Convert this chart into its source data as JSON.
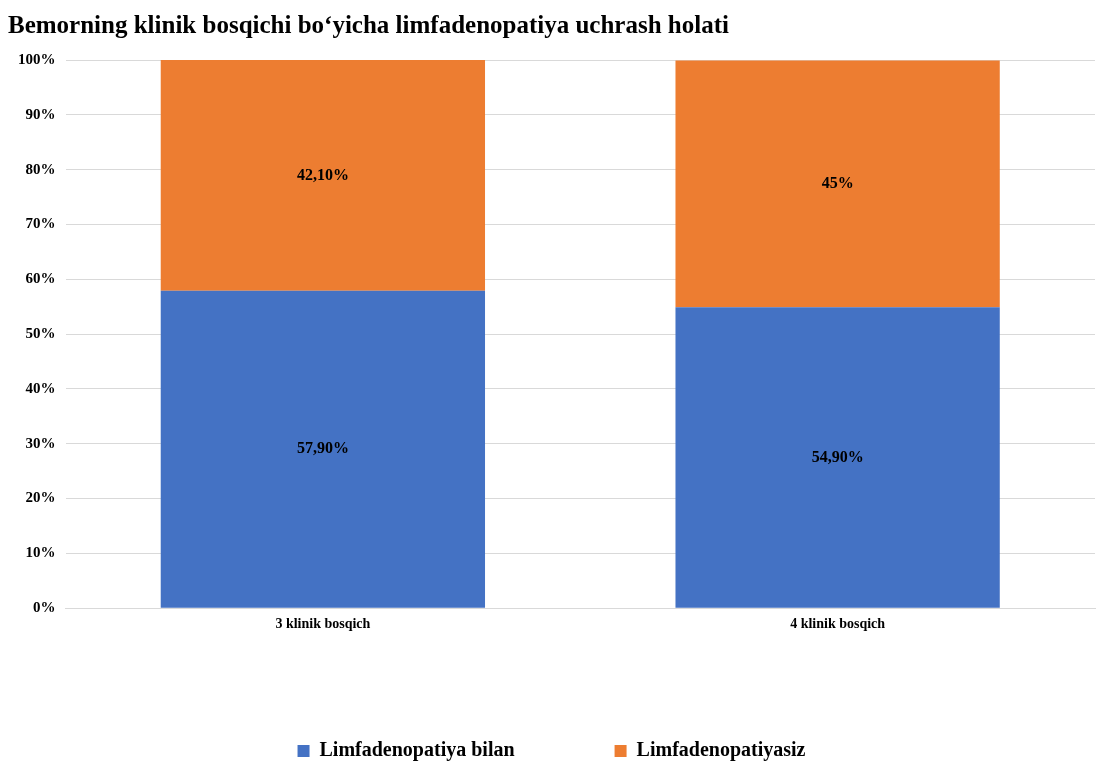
{
  "chart_data": {
    "type": "bar",
    "title": "Bemorning klinik bosqichi bo‘yicha limfadenopatiya uchrash holati",
    "categories": [
      "3 klinik bosqich",
      "4 klinik bosqich"
    ],
    "stacked": true,
    "series": [
      {
        "name": "Limfadenopatiya bilan",
        "color": "#4472c4",
        "values": [
          57.9,
          54.9
        ],
        "value_labels": [
          "57,90%",
          "54,90%"
        ]
      },
      {
        "name": "Limfadenopatiyasiz",
        "color": "#ed7d31",
        "values": [
          42.1,
          45
        ],
        "value_labels": [
          "42,10%",
          "45%"
        ]
      }
    ],
    "ylim": [
      0,
      100
    ],
    "yticks": [
      {
        "value": 0,
        "label": "0%"
      },
      {
        "value": 10,
        "label": "10%"
      },
      {
        "value": 20,
        "label": "20%"
      },
      {
        "value": 30,
        "label": "30%"
      },
      {
        "value": 40,
        "label": "40%"
      },
      {
        "value": 50,
        "label": "50%"
      },
      {
        "value": 60,
        "label": "60%"
      },
      {
        "value": 70,
        "label": "70%"
      },
      {
        "value": 80,
        "label": "80%"
      },
      {
        "value": 90,
        "label": "90%"
      },
      {
        "value": 100,
        "label": "100%"
      }
    ],
    "grid": "y",
    "legend": "bottom"
  }
}
